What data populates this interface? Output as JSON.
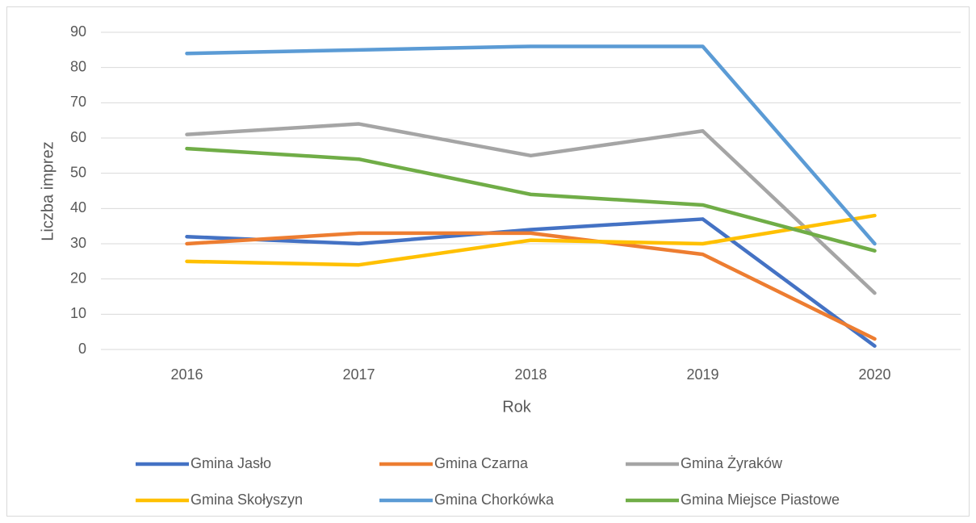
{
  "chart_data": {
    "type": "line",
    "x_label": "Rok",
    "y_label": "Liczba imprez",
    "categories": [
      "2016",
      "2017",
      "2018",
      "2019",
      "2020"
    ],
    "series": [
      {
        "name": "Gmina Jasło",
        "color": "#4472c4",
        "values": [
          32,
          30,
          34,
          37,
          1
        ]
      },
      {
        "name": "Gmina Czarna",
        "color": "#ed7d31",
        "values": [
          30,
          33,
          33,
          27,
          3
        ]
      },
      {
        "name": "Gmina Żyraków",
        "color": "#a5a5a5",
        "values": [
          61,
          64,
          55,
          62,
          16
        ]
      },
      {
        "name": "Gmina Skołyszyn",
        "color": "#ffc000",
        "values": [
          25,
          24,
          31,
          30,
          38
        ]
      },
      {
        "name": "Gmina Chorkówka",
        "color": "#5b9bd5",
        "values": [
          84,
          85,
          86,
          86,
          30
        ]
      },
      {
        "name": "Gmina Miejsce Piastowe",
        "color": "#70ad47",
        "values": [
          57,
          54,
          44,
          41,
          28
        ]
      }
    ],
    "ylim": [
      0,
      90
    ],
    "yticks": [
      0,
      10,
      20,
      30,
      40,
      50,
      60,
      70,
      80,
      90
    ],
    "grid": true,
    "legend": "bottom"
  }
}
